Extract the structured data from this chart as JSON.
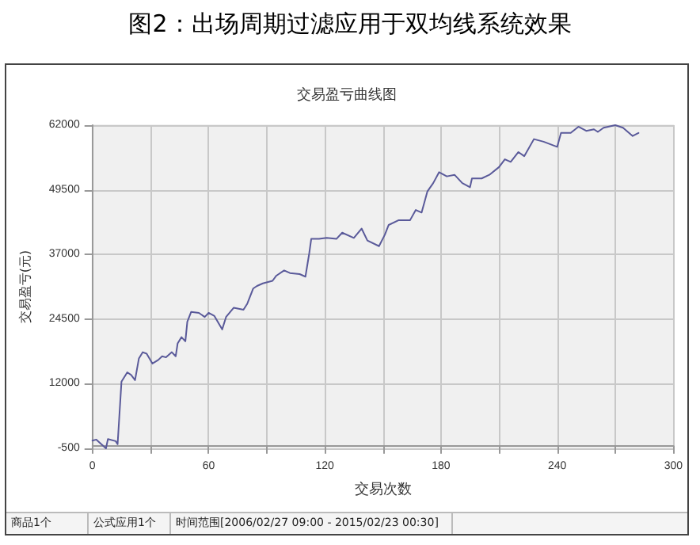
{
  "chart_data": {
    "type": "line",
    "title": "图2：出场周期过滤应用于双均线系统效果",
    "subtitle": "交易盈亏曲线图",
    "xlabel": "交易次数",
    "ylabel": "交易盈亏(元)",
    "annotations": [
      "商品1个",
      "公式应用1个",
      "时间范围[2006/02/27 09:00 - 2015/02/23 00:30]"
    ],
    "xlim": [
      0,
      300
    ],
    "xticks": [
      0,
      {
        "value": 30,
        "label": null
      },
      60,
      {
        "value": 90,
        "label": null
      },
      120,
      {
        "value": 150,
        "label": null
      },
      180,
      {
        "value": 210,
        "label": null
      },
      240,
      {
        "value": 270,
        "label": null
      },
      300
    ],
    "ylim": [
      -500,
      62000
    ],
    "yticks": [
      -500,
      12000,
      24500,
      37000,
      49500,
      62000
    ],
    "grid": true,
    "marker": "none",
    "line_style": "solid",
    "series": [
      {
        "color": "#5a5a9a",
        "x": [
          0,
          2,
          7,
          8,
          12,
          13,
          15,
          18,
          20,
          22,
          24,
          26,
          28,
          31,
          34,
          36,
          38,
          41,
          43,
          44,
          46,
          48,
          49,
          51,
          55,
          58,
          60,
          63,
          67,
          69,
          73,
          78,
          80,
          83,
          85,
          88,
          93,
          95,
          99,
          102,
          107,
          110,
          112,
          113,
          117,
          121,
          126,
          129,
          135,
          139,
          142,
          148,
          151,
          153,
          158,
          164,
          167,
          170,
          173,
          176,
          179,
          183,
          187,
          191,
          195,
          196,
          201,
          205,
          210,
          213,
          216,
          220,
          223,
          228,
          233,
          240,
          242,
          247,
          251,
          255,
          259,
          261,
          264,
          270,
          274,
          279,
          282
        ],
        "values": [
          1000,
          1200,
          -500,
          1300,
          900,
          300,
          12400,
          14200,
          13700,
          12700,
          16900,
          18100,
          17800,
          15900,
          16600,
          17300,
          17100,
          18100,
          17300,
          19800,
          21000,
          20200,
          24000,
          25900,
          25700,
          24900,
          25700,
          25100,
          22500,
          24900,
          26700,
          26300,
          27500,
          30400,
          30900,
          31400,
          31900,
          32900,
          33900,
          33400,
          33200,
          32700,
          37300,
          40000,
          40000,
          40200,
          40000,
          41200,
          40200,
          42000,
          39700,
          38600,
          40800,
          42700,
          43600,
          43600,
          45600,
          45100,
          49200,
          50800,
          52900,
          52100,
          52400,
          50800,
          50000,
          51700,
          51700,
          52400,
          53900,
          55400,
          54900,
          56800,
          56000,
          59300,
          58800,
          57800,
          60500,
          60500,
          61700,
          60900,
          61200,
          60700,
          61500,
          62000,
          61500,
          59900,
          60500
        ]
      }
    ]
  }
}
